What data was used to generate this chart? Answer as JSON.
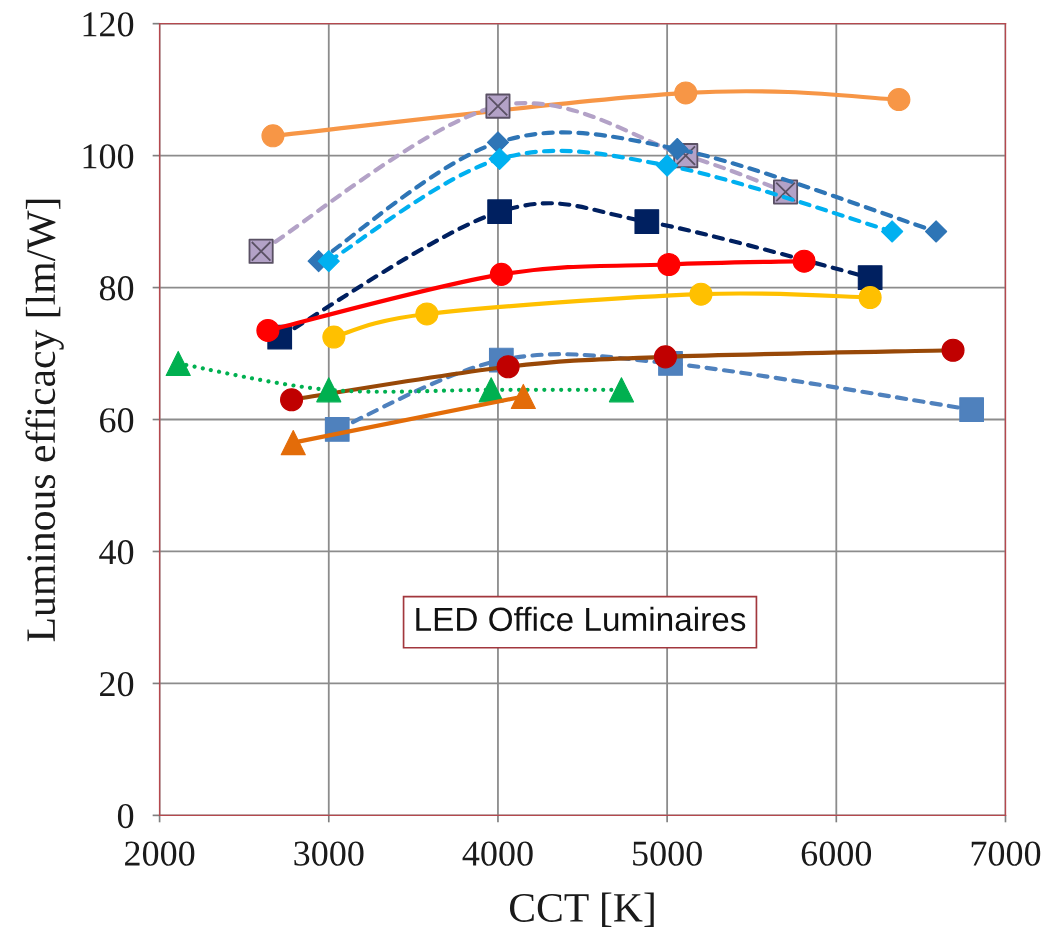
{
  "chart_data": {
    "type": "line",
    "xlabel": "CCT [K]",
    "ylabel": "Luminous efficacy [lm/W]",
    "xlim": [
      2000,
      7000
    ],
    "xticks": [
      2000,
      3000,
      4000,
      5000,
      6000,
      7000
    ],
    "ylim": [
      0,
      120
    ],
    "yticks": [
      0,
      20,
      40,
      60,
      80,
      100,
      120
    ],
    "grid": true,
    "annotations": [
      "LED Office Luminaires"
    ],
    "series": [
      {
        "color": "#f79646",
        "marker": "circle",
        "line_style": "solid",
        "x": [
          2670,
          5110,
          6370
        ],
        "values": [
          103,
          109.5,
          108.5
        ]
      },
      {
        "color": "#b3a2c7",
        "marker": "cross",
        "line_style": "dashed",
        "x": [
          2600,
          4000,
          5110,
          5700
        ],
        "values": [
          85.5,
          107.5,
          100,
          94.5
        ]
      },
      {
        "color": "#2e75b6",
        "marker": "diamond",
        "line_style": "dashed",
        "x": [
          2940,
          4000,
          5060,
          6590
        ],
        "values": [
          84,
          102,
          101,
          88.5
        ]
      },
      {
        "color": "#00b0f0",
        "marker": "diamond",
        "line_style": "dashed",
        "x": [
          3000,
          4010,
          5000,
          6330
        ],
        "values": [
          84,
          99.5,
          98.5,
          88.5
        ]
      },
      {
        "color": "#002060",
        "marker": "square",
        "line_style": "dashed",
        "x": [
          2710,
          4010,
          4880,
          6200
        ],
        "values": [
          72.5,
          91.5,
          90,
          81.5
        ]
      },
      {
        "color": "#ff0000",
        "marker": "circle",
        "line_style": "solid",
        "x": [
          2640,
          4020,
          5010,
          5810
        ],
        "values": [
          73.5,
          82,
          83.5,
          84
        ]
      },
      {
        "color": "#ffc000",
        "marker": "circle",
        "line_style": "solid",
        "x": [
          3030,
          3580,
          5200,
          6200
        ],
        "values": [
          72.5,
          76,
          79,
          78.5
        ]
      },
      {
        "color": "#4f81bd",
        "marker": "square",
        "line_style": "dashed",
        "x": [
          3050,
          4020,
          5020,
          6800
        ],
        "values": [
          58.5,
          69,
          68.5,
          61.5
        ]
      },
      {
        "color": "#984807",
        "colors": [
          "#c00000",
          "#c00000",
          "#c00000",
          "#c00000"
        ],
        "marker": "circle",
        "line_style": "solid",
        "x": [
          2780,
          4060,
          4990,
          6690
        ],
        "values": [
          63,
          68,
          69.5,
          70.5
        ]
      },
      {
        "color": "#00b050",
        "marker": "triangle",
        "line_style": "dotted",
        "x": [
          2110,
          3000,
          3960,
          4730
        ],
        "values": [
          68.5,
          64.5,
          64.5,
          64.5
        ]
      },
      {
        "color": "#e36c09",
        "marker": "triangle",
        "line_style": "solid",
        "x": [
          2790,
          4150
        ],
        "values": [
          56.5,
          63.5
        ]
      }
    ]
  }
}
